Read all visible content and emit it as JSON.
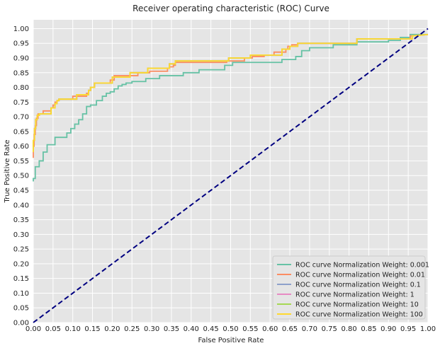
{
  "chart_data": {
    "type": "line",
    "title": "Receiver operating characteristic (ROC) Curve",
    "xlabel": "False Positive Rate",
    "ylabel": "True Positive Rate",
    "xlim": [
      0,
      1
    ],
    "ylim": [
      0,
      1.03
    ],
    "xticks": [
      "0.00",
      "0.05",
      "0.10",
      "0.15",
      "0.20",
      "0.25",
      "0.30",
      "0.35",
      "0.40",
      "0.45",
      "0.50",
      "0.55",
      "0.60",
      "0.65",
      "0.70",
      "0.75",
      "0.80",
      "0.85",
      "0.90",
      "0.95",
      "1.00"
    ],
    "yticks": [
      "0.00",
      "0.05",
      "0.10",
      "0.15",
      "0.20",
      "0.25",
      "0.30",
      "0.35",
      "0.40",
      "0.45",
      "0.50",
      "0.55",
      "0.60",
      "0.65",
      "0.70",
      "0.75",
      "0.80",
      "0.85",
      "0.90",
      "0.95",
      "1.00"
    ],
    "grid": true,
    "legend_position": "lower-right",
    "background_color": "#e5e5e5",
    "diagonal": {
      "x": [
        0,
        1
      ],
      "y": [
        0,
        1
      ],
      "color": "#000080",
      "style": "dashed"
    },
    "series": [
      {
        "name": "ROC curve Normalization Weight: 0.001",
        "color": "#66c2a5",
        "x": [
          0,
          0,
          0.005,
          0.005,
          0.015,
          0.015,
          0.025,
          0.025,
          0.035,
          0.035,
          0.055,
          0.055,
          0.085,
          0.085,
          0.095,
          0.095,
          0.105,
          0.105,
          0.115,
          0.115,
          0.125,
          0.125,
          0.135,
          0.135,
          0.145,
          0.145,
          0.16,
          0.16,
          0.175,
          0.175,
          0.185,
          0.185,
          0.195,
          0.195,
          0.205,
          0.205,
          0.215,
          0.215,
          0.225,
          0.225,
          0.235,
          0.235,
          0.25,
          0.25,
          0.285,
          0.285,
          0.32,
          0.32,
          0.38,
          0.38,
          0.42,
          0.42,
          0.485,
          0.485,
          0.505,
          0.505,
          0.63,
          0.63,
          0.665,
          0.665,
          0.68,
          0.68,
          0.7,
          0.7,
          0.76,
          0.76,
          0.82,
          0.82,
          0.9,
          0.9,
          0.93,
          0.93,
          0.955,
          0.955,
          1
        ],
        "y": [
          0.48,
          0.49,
          0.49,
          0.53,
          0.53,
          0.55,
          0.55,
          0.58,
          0.58,
          0.605,
          0.605,
          0.63,
          0.63,
          0.645,
          0.645,
          0.66,
          0.66,
          0.675,
          0.675,
          0.69,
          0.69,
          0.71,
          0.71,
          0.735,
          0.735,
          0.74,
          0.74,
          0.755,
          0.755,
          0.77,
          0.77,
          0.78,
          0.78,
          0.785,
          0.785,
          0.795,
          0.795,
          0.805,
          0.805,
          0.81,
          0.81,
          0.815,
          0.815,
          0.82,
          0.82,
          0.83,
          0.83,
          0.84,
          0.84,
          0.85,
          0.85,
          0.86,
          0.86,
          0.875,
          0.875,
          0.885,
          0.885,
          0.895,
          0.895,
          0.905,
          0.905,
          0.925,
          0.925,
          0.935,
          0.935,
          0.945,
          0.945,
          0.955,
          0.955,
          0.96,
          0.96,
          0.97,
          0.97,
          0.98,
          0.98
        ]
      },
      {
        "name": "ROC curve Normalization Weight: 0.01",
        "color": "#fc8d62",
        "x": [
          0,
          0,
          0.002,
          0.002,
          0.005,
          0.005,
          0.008,
          0.008,
          0.012,
          0.012,
          0.025,
          0.025,
          0.045,
          0.045,
          0.05,
          0.05,
          0.055,
          0.055,
          0.06,
          0.06,
          0.065,
          0.065,
          0.1,
          0.1,
          0.135,
          0.135,
          0.14,
          0.14,
          0.145,
          0.145,
          0.155,
          0.155,
          0.195,
          0.195,
          0.205,
          0.205,
          0.265,
          0.265,
          0.295,
          0.295,
          0.34,
          0.34,
          0.345,
          0.345,
          0.355,
          0.355,
          0.36,
          0.36,
          0.49,
          0.49,
          0.535,
          0.535,
          0.555,
          0.555,
          0.585,
          0.585,
          0.61,
          0.61,
          0.64,
          0.64,
          0.645,
          0.645,
          0.655,
          0.655,
          0.67,
          0.67,
          0.82,
          0.82,
          0.955,
          0.955,
          1
        ],
        "y": [
          0.56,
          0.6,
          0.6,
          0.64,
          0.64,
          0.67,
          0.67,
          0.695,
          0.695,
          0.71,
          0.71,
          0.72,
          0.72,
          0.73,
          0.73,
          0.74,
          0.74,
          0.75,
          0.75,
          0.755,
          0.755,
          0.76,
          0.76,
          0.77,
          0.77,
          0.78,
          0.78,
          0.79,
          0.79,
          0.8,
          0.8,
          0.815,
          0.815,
          0.825,
          0.825,
          0.84,
          0.84,
          0.85,
          0.85,
          0.855,
          0.855,
          0.865,
          0.865,
          0.87,
          0.87,
          0.875,
          0.875,
          0.885,
          0.885,
          0.89,
          0.89,
          0.9,
          0.9,
          0.905,
          0.905,
          0.91,
          0.91,
          0.92,
          0.92,
          0.93,
          0.93,
          0.94,
          0.94,
          0.945,
          0.945,
          0.95,
          0.95,
          0.965,
          0.965,
          0.975,
          0.98
        ]
      },
      {
        "name": "ROC curve Normalization Weight: 0.1",
        "color": "#8da0cb",
        "x": [
          0,
          0,
          0.003,
          0.003,
          0.006,
          0.006,
          0.01,
          0.01,
          0.015,
          0.015,
          0.045,
          0.045,
          0.055,
          0.055,
          0.06,
          0.06,
          0.065,
          0.065,
          0.11,
          0.11,
          0.14,
          0.14,
          0.145,
          0.145,
          0.155,
          0.155,
          0.2,
          0.2,
          0.245,
          0.245,
          0.29,
          0.29,
          0.345,
          0.345,
          0.36,
          0.36,
          0.495,
          0.495,
          0.55,
          0.55,
          0.63,
          0.63,
          0.65,
          0.65,
          0.67,
          0.67,
          0.82,
          0.82,
          0.96,
          0.96,
          1
        ],
        "y": [
          0.58,
          0.62,
          0.62,
          0.66,
          0.66,
          0.69,
          0.69,
          0.705,
          0.705,
          0.71,
          0.71,
          0.73,
          0.73,
          0.745,
          0.745,
          0.755,
          0.755,
          0.76,
          0.76,
          0.775,
          0.775,
          0.79,
          0.79,
          0.8,
          0.8,
          0.815,
          0.815,
          0.835,
          0.835,
          0.85,
          0.85,
          0.865,
          0.865,
          0.88,
          0.88,
          0.89,
          0.89,
          0.9,
          0.9,
          0.91,
          0.91,
          0.93,
          0.93,
          0.94,
          0.94,
          0.95,
          0.95,
          0.965,
          0.965,
          0.975,
          0.98
        ]
      },
      {
        "name": "ROC curve Normalization Weight: 1",
        "color": "#e78ac3",
        "x": [
          0,
          0,
          0.003,
          0.003,
          0.006,
          0.006,
          0.01,
          0.01,
          0.015,
          0.015,
          0.045,
          0.045,
          0.055,
          0.055,
          0.06,
          0.06,
          0.065,
          0.065,
          0.11,
          0.11,
          0.14,
          0.14,
          0.145,
          0.145,
          0.155,
          0.155,
          0.2,
          0.2,
          0.245,
          0.245,
          0.29,
          0.29,
          0.345,
          0.345,
          0.36,
          0.36,
          0.495,
          0.495,
          0.55,
          0.55,
          0.63,
          0.63,
          0.65,
          0.65,
          0.67,
          0.67,
          0.82,
          0.82,
          0.96,
          0.96,
          1
        ],
        "y": [
          0.58,
          0.62,
          0.62,
          0.66,
          0.66,
          0.69,
          0.69,
          0.705,
          0.705,
          0.71,
          0.71,
          0.73,
          0.73,
          0.745,
          0.745,
          0.755,
          0.755,
          0.76,
          0.76,
          0.775,
          0.775,
          0.79,
          0.79,
          0.8,
          0.8,
          0.815,
          0.815,
          0.835,
          0.835,
          0.85,
          0.85,
          0.865,
          0.865,
          0.88,
          0.88,
          0.89,
          0.89,
          0.9,
          0.9,
          0.91,
          0.91,
          0.93,
          0.93,
          0.94,
          0.94,
          0.95,
          0.95,
          0.965,
          0.965,
          0.975,
          0.98
        ]
      },
      {
        "name": "ROC curve Normalization Weight: 10",
        "color": "#a6d854",
        "x": [
          0,
          0,
          0.003,
          0.003,
          0.006,
          0.006,
          0.01,
          0.01,
          0.015,
          0.015,
          0.045,
          0.045,
          0.055,
          0.055,
          0.06,
          0.06,
          0.065,
          0.065,
          0.11,
          0.11,
          0.14,
          0.14,
          0.145,
          0.145,
          0.155,
          0.155,
          0.2,
          0.2,
          0.245,
          0.245,
          0.29,
          0.29,
          0.345,
          0.345,
          0.36,
          0.36,
          0.495,
          0.495,
          0.55,
          0.55,
          0.63,
          0.63,
          0.65,
          0.65,
          0.67,
          0.67,
          0.82,
          0.82,
          0.96,
          0.96,
          1
        ],
        "y": [
          0.58,
          0.62,
          0.62,
          0.66,
          0.66,
          0.69,
          0.69,
          0.705,
          0.705,
          0.71,
          0.71,
          0.73,
          0.73,
          0.745,
          0.745,
          0.755,
          0.755,
          0.76,
          0.76,
          0.775,
          0.775,
          0.79,
          0.79,
          0.8,
          0.8,
          0.815,
          0.815,
          0.835,
          0.835,
          0.85,
          0.85,
          0.865,
          0.865,
          0.88,
          0.88,
          0.89,
          0.89,
          0.9,
          0.9,
          0.91,
          0.91,
          0.93,
          0.93,
          0.94,
          0.94,
          0.95,
          0.95,
          0.965,
          0.965,
          0.975,
          0.98
        ]
      },
      {
        "name": "ROC curve Normalization Weight: 100",
        "color": "#ffd92f",
        "x": [
          0,
          0,
          0.003,
          0.003,
          0.006,
          0.006,
          0.01,
          0.01,
          0.015,
          0.015,
          0.045,
          0.045,
          0.055,
          0.055,
          0.06,
          0.06,
          0.065,
          0.065,
          0.11,
          0.11,
          0.14,
          0.14,
          0.145,
          0.145,
          0.155,
          0.155,
          0.2,
          0.2,
          0.245,
          0.245,
          0.29,
          0.29,
          0.345,
          0.345,
          0.36,
          0.36,
          0.495,
          0.495,
          0.55,
          0.55,
          0.63,
          0.63,
          0.65,
          0.65,
          0.67,
          0.67,
          0.82,
          0.82,
          0.96,
          0.96,
          1
        ],
        "y": [
          0.58,
          0.62,
          0.62,
          0.66,
          0.66,
          0.69,
          0.69,
          0.705,
          0.705,
          0.71,
          0.71,
          0.73,
          0.73,
          0.745,
          0.745,
          0.755,
          0.755,
          0.76,
          0.76,
          0.775,
          0.775,
          0.79,
          0.79,
          0.8,
          0.8,
          0.815,
          0.815,
          0.835,
          0.835,
          0.85,
          0.85,
          0.865,
          0.865,
          0.88,
          0.88,
          0.89,
          0.89,
          0.9,
          0.9,
          0.91,
          0.91,
          0.93,
          0.93,
          0.94,
          0.94,
          0.95,
          0.95,
          0.965,
          0.965,
          0.975,
          0.98
        ]
      }
    ]
  }
}
